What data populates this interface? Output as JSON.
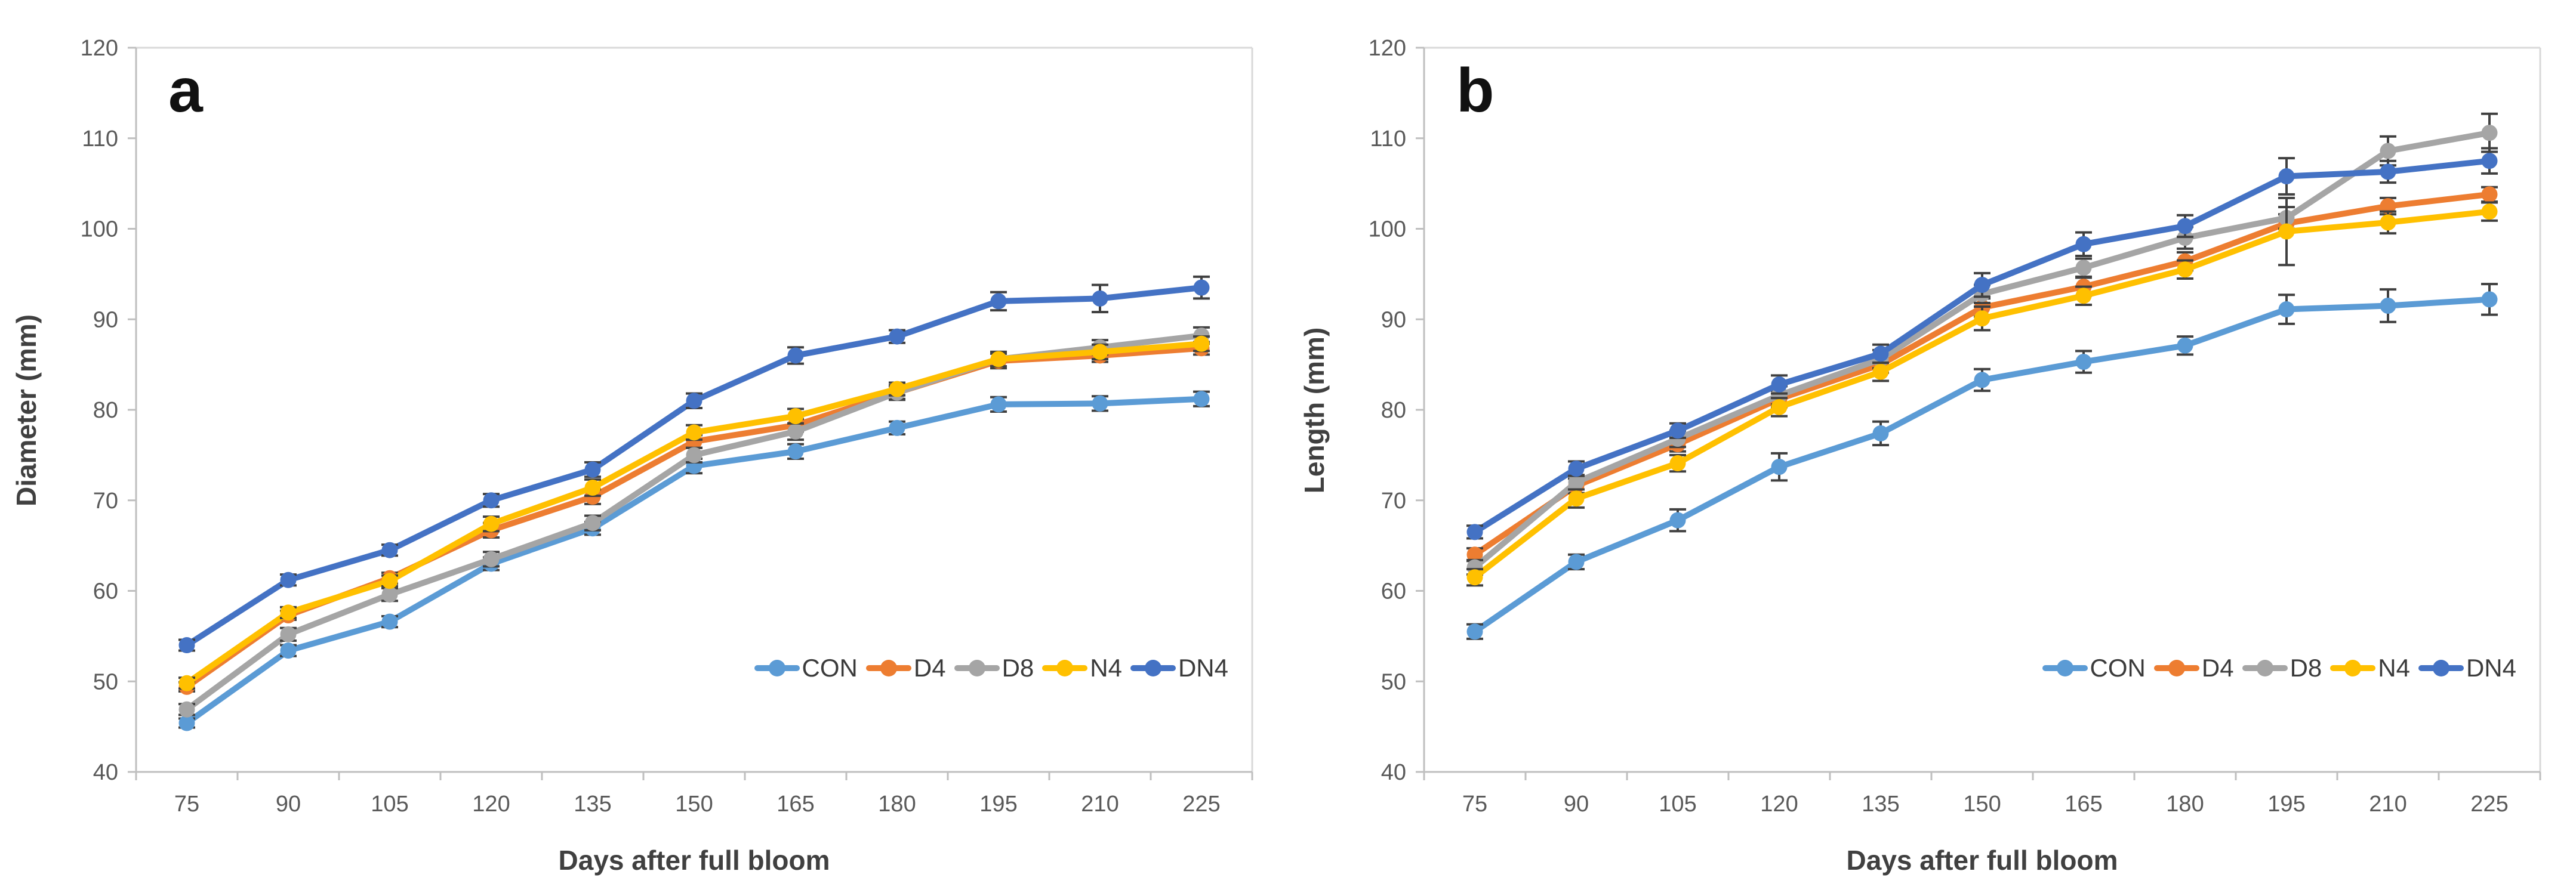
{
  "style": {
    "background": "#FFFFFF",
    "axis_line_color": "#BFBFBF",
    "plot_border_color": "#D9D9D9",
    "tick_label_color": "#595959",
    "axis_title_color": "#404040",
    "legend_text_color": "#3B3B3B",
    "error_bar_color": "#404040",
    "panel_label_color": "#111111"
  },
  "chart_data": [
    {
      "type": "line",
      "panel_label": "a",
      "y_axis_title": "Diameter (mm)",
      "x_axis_title": "Days after full bloom",
      "x_tick_labels": [
        "75",
        "90",
        "105",
        "120",
        "135",
        "150",
        "165",
        "180",
        "195",
        "210",
        "225"
      ],
      "y_tick_labels": [
        "40",
        "50",
        "60",
        "70",
        "80",
        "90",
        "100",
        "110",
        "120"
      ],
      "ylim": [
        40,
        120
      ],
      "grid": false,
      "legend_position": "inside-bottom-right",
      "markers": "circle",
      "error_bars": true,
      "series": [
        {
          "name": "CON",
          "color": "#5B9BD5",
          "values": [
            45.4,
            53.4,
            56.6,
            63.0,
            66.9,
            73.8,
            75.4,
            78.0,
            80.6,
            80.7,
            81.2
          ],
          "errors": [
            0.5,
            0.6,
            0.6,
            0.7,
            0.7,
            0.8,
            0.8,
            0.7,
            0.8,
            0.8,
            0.8
          ]
        },
        {
          "name": "D4",
          "color": "#ED7D31",
          "values": [
            49.4,
            57.3,
            61.4,
            66.7,
            70.4,
            76.5,
            78.3,
            81.9,
            85.4,
            86.0,
            86.8
          ],
          "errors": [
            0.5,
            0.5,
            0.6,
            0.8,
            0.8,
            0.7,
            0.7,
            0.7,
            0.8,
            0.7,
            0.7
          ]
        },
        {
          "name": "D8",
          "color": "#A5A5A5",
          "values": [
            46.9,
            55.2,
            59.6,
            63.5,
            67.5,
            75.0,
            77.6,
            81.9,
            85.6,
            86.9,
            88.2
          ],
          "errors": [
            0.6,
            0.7,
            0.7,
            0.8,
            0.8,
            0.8,
            0.9,
            0.8,
            0.8,
            0.8,
            0.9
          ]
        },
        {
          "name": "N4",
          "color": "#FFC000",
          "values": [
            49.8,
            57.6,
            61.1,
            67.4,
            71.4,
            77.5,
            79.3,
            82.3,
            85.6,
            86.4,
            87.3
          ],
          "errors": [
            0.6,
            0.6,
            0.6,
            0.8,
            0.9,
            0.8,
            0.8,
            0.7,
            0.8,
            0.8,
            0.8
          ]
        },
        {
          "name": "DN4",
          "color": "#4472C4",
          "values": [
            54.0,
            61.2,
            64.5,
            70.0,
            73.4,
            81.0,
            86.0,
            88.1,
            92.0,
            92.3,
            93.5
          ],
          "errors": [
            0.6,
            0.6,
            0.6,
            0.7,
            0.8,
            0.8,
            0.9,
            0.7,
            1.0,
            1.5,
            1.2
          ]
        }
      ]
    },
    {
      "type": "line",
      "panel_label": "b",
      "y_axis_title": "Length (mm)",
      "x_axis_title": "Days after full bloom",
      "x_tick_labels": [
        "75",
        "90",
        "105",
        "120",
        "135",
        "150",
        "165",
        "180",
        "195",
        "210",
        "225"
      ],
      "y_tick_labels": [
        "40",
        "50",
        "60",
        "70",
        "80",
        "90",
        "100",
        "110",
        "120"
      ],
      "ylim": [
        40,
        120
      ],
      "grid": false,
      "legend_position": "inside-bottom-right",
      "markers": "circle",
      "error_bars": true,
      "series": [
        {
          "name": "CON",
          "color": "#5B9BD5",
          "values": [
            55.5,
            63.2,
            67.8,
            73.7,
            77.4,
            83.3,
            85.3,
            87.1,
            91.1,
            91.5,
            92.2
          ],
          "errors": [
            0.8,
            0.8,
            1.2,
            1.5,
            1.3,
            1.2,
            1.2,
            1.0,
            1.6,
            1.8,
            1.7
          ]
        },
        {
          "name": "D4",
          "color": "#ED7D31",
          "values": [
            64.0,
            71.6,
            76.2,
            81.2,
            85.0,
            91.3,
            93.6,
            96.4,
            100.6,
            102.5,
            103.8
          ],
          "errors": [
            0.7,
            0.8,
            0.8,
            0.9,
            0.9,
            1.0,
            1.0,
            1.0,
            1.0,
            0.9,
            0.8
          ]
        },
        {
          "name": "D8",
          "color": "#A5A5A5",
          "values": [
            62.6,
            72.0,
            76.8,
            81.6,
            85.6,
            92.8,
            95.7,
            99.0,
            101.2,
            108.6,
            110.6
          ],
          "errors": [
            0.8,
            0.8,
            0.9,
            1.0,
            1.0,
            1.0,
            1.0,
            1.2,
            1.2,
            1.6,
            2.1
          ]
        },
        {
          "name": "N4",
          "color": "#FFC000",
          "values": [
            61.5,
            70.2,
            74.1,
            80.3,
            84.2,
            90.1,
            92.6,
            95.5,
            99.7,
            100.7,
            101.9
          ],
          "errors": [
            0.9,
            1.0,
            0.9,
            1.0,
            1.0,
            1.3,
            1.0,
            1.0,
            3.7,
            1.2,
            1.0
          ]
        },
        {
          "name": "DN4",
          "color": "#4472C4",
          "values": [
            66.5,
            73.5,
            77.7,
            82.8,
            86.2,
            93.8,
            98.3,
            100.3,
            105.8,
            106.3,
            107.5
          ],
          "errors": [
            0.7,
            0.8,
            0.8,
            1.0,
            1.0,
            1.3,
            1.3,
            1.2,
            2.0,
            1.2,
            1.4
          ]
        }
      ]
    }
  ]
}
